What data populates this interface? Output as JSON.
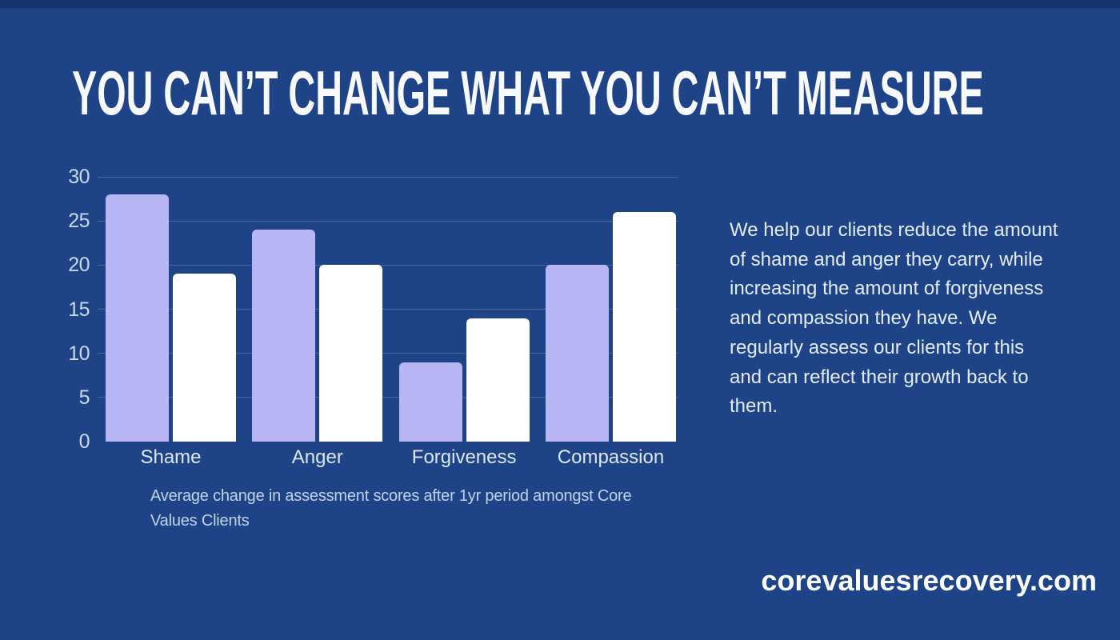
{
  "title": "YOU CAN’T CHANGE WHAT YOU CAN’T MEASURE",
  "description": "We help our clients reduce the amount of shame and anger they carry, while increasing the amount of forgiveness and compassion they have. We regularly assess our clients for this and can reflect their growth back to them.",
  "footer": {
    "website": "corevaluesrecovery.com"
  },
  "chart_data": {
    "type": "bar",
    "title": "",
    "categories": [
      "Shame",
      "Anger",
      "Forgiveness",
      "Compassion"
    ],
    "series": [
      {
        "name": "lavender",
        "color": "#b8b6f4",
        "values": [
          28,
          24,
          9,
          20
        ]
      },
      {
        "name": "white",
        "color": "#ffffff",
        "values": [
          19,
          20,
          14,
          26
        ]
      }
    ],
    "ylim": [
      0,
      30
    ],
    "yticks": [
      0,
      5,
      10,
      15,
      20,
      25,
      30
    ],
    "grid": "horizontal",
    "legend": "none",
    "caption": "Average change in assessment scores after 1yr period amongst Core Values Clients"
  },
  "colors": {
    "background": "#1e4487",
    "bar_lavender": "#b8b6f4",
    "bar_white": "#ffffff",
    "title_text": "#f6f8fc",
    "body_text": "#e4ebf7",
    "axis_text": "#c9d6ee",
    "caption_text": "#c3d1e9"
  }
}
